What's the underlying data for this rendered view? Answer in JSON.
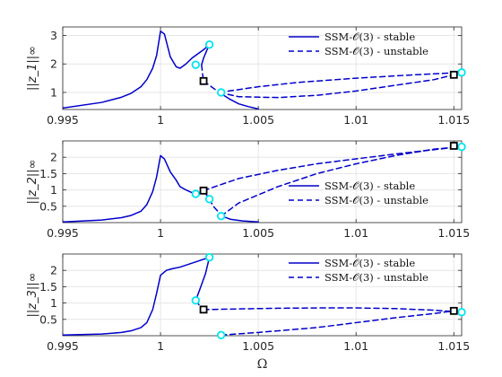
{
  "chart_data": [
    {
      "type": "line",
      "ylabel": "||z_1||∞",
      "xlim": [
        0.995,
        1.0154
      ],
      "ylim": [
        0.4,
        3.3
      ],
      "xticks": [
        0.995,
        1.0,
        1.005,
        1.01,
        1.015
      ],
      "xtick_labels": [
        "0.995",
        "1",
        "1.005",
        "1.01",
        "1.015"
      ],
      "yticks": [
        1,
        2,
        3
      ],
      "ytick_labels": [
        "1",
        "2",
        "3"
      ],
      "grid": true,
      "legend": {
        "placement": "top-right",
        "entries": [
          {
            "label": "SSM-𝒪(3) - stable",
            "style": "solid"
          },
          {
            "label": "SSM-𝒪(3) - unstable",
            "style": "dashed"
          }
        ]
      },
      "series": [
        {
          "style": "solid",
          "x": [
            0.995,
            0.997,
            0.998,
            0.9985,
            0.999,
            0.9993,
            0.9996,
            0.9998,
            1.0,
            1.0002,
            1.0005,
            1.0008,
            1.001,
            1.0013,
            1.0016,
            1.0019,
            1.0022,
            1.0025
          ],
          "y": [
            0.45,
            0.65,
            0.83,
            0.97,
            1.2,
            1.45,
            1.85,
            2.3,
            3.15,
            3.05,
            2.25,
            1.9,
            1.85,
            2.0,
            2.2,
            2.35,
            2.5,
            2.68
          ]
        },
        {
          "style": "solid",
          "x": [
            1.0025,
            1.00235,
            1.0022,
            1.0021
          ],
          "y": [
            2.68,
            2.45,
            2.2,
            1.97
          ]
        },
        {
          "style": "dashed",
          "x": [
            1.0021,
            1.00215,
            1.0022
          ],
          "y": [
            1.97,
            1.65,
            1.4
          ]
        },
        {
          "style": "dashed",
          "x": [
            1.0022,
            1.0026,
            1.003
          ],
          "y": [
            1.4,
            1.2,
            1.0
          ]
        },
        {
          "style": "dashed",
          "x": [
            1.003,
            1.005,
            1.007,
            1.01,
            1.013,
            1.0154
          ],
          "y": [
            1.0,
            1.2,
            1.35,
            1.5,
            1.62,
            1.7
          ]
        },
        {
          "style": "dashed",
          "x": [
            1.003,
            1.004,
            1.006,
            1.008,
            1.01,
            1.012,
            1.014,
            1.015
          ],
          "y": [
            1.0,
            0.85,
            0.82,
            0.9,
            1.05,
            1.25,
            1.45,
            1.62
          ]
        },
        {
          "style": "solid",
          "x": [
            1.003,
            1.0035,
            1.004,
            1.0045,
            1.005
          ],
          "y": [
            1.0,
            0.78,
            0.6,
            0.5,
            0.42
          ]
        }
      ],
      "markers": [
        {
          "kind": "fold",
          "x": 1.0025,
          "y": 2.68
        },
        {
          "kind": "fold",
          "x": 1.0018,
          "y": 1.97
        },
        {
          "kind": "fold",
          "x": 1.0031,
          "y": 1.0
        },
        {
          "kind": "fold",
          "x": 1.0154,
          "y": 1.7
        },
        {
          "kind": "hopf",
          "x": 1.0022,
          "y": 1.4
        },
        {
          "kind": "hopf",
          "x": 1.015,
          "y": 1.62
        }
      ]
    },
    {
      "type": "line",
      "ylabel": "||z_2||∞",
      "xlim": [
        0.995,
        1.0154
      ],
      "ylim": [
        0.0,
        2.5
      ],
      "xticks": [
        0.995,
        1.0,
        1.005,
        1.01,
        1.015
      ],
      "xtick_labels": [
        "0.995",
        "1",
        "1.005",
        "1.01",
        "1.015"
      ],
      "yticks": [
        0.5,
        1,
        1.5,
        2
      ],
      "ytick_labels": [
        "0.5",
        "1",
        "1.5",
        "2"
      ],
      "grid": true,
      "legend": {
        "placement": "bottom-right",
        "entries": [
          {
            "label": "SSM-𝒪(3) - stable",
            "style": "solid"
          },
          {
            "label": "SSM-𝒪(3) - unstable",
            "style": "dashed"
          }
        ]
      },
      "series": [
        {
          "style": "solid",
          "x": [
            0.995,
            0.997,
            0.998,
            0.9985,
            0.999,
            0.9993,
            0.9996,
            0.9998,
            1.0,
            1.0002,
            1.0005,
            1.0008,
            1.001,
            1.0013,
            1.0016,
            1.0018
          ],
          "y": [
            0.02,
            0.08,
            0.15,
            0.22,
            0.35,
            0.55,
            0.95,
            1.4,
            2.05,
            1.95,
            1.55,
            1.3,
            1.1,
            1.0,
            0.92,
            0.88
          ]
        },
        {
          "style": "solid",
          "x": [
            1.0018,
            1.002,
            1.0022,
            1.0025
          ],
          "y": [
            0.88,
            0.92,
            0.98,
            0.72
          ]
        },
        {
          "style": "dashed",
          "x": [
            1.0022,
            1.004,
            1.006,
            1.008,
            1.01,
            1.012,
            1.015
          ],
          "y": [
            0.98,
            1.35,
            1.6,
            1.8,
            1.95,
            2.1,
            2.3
          ]
        },
        {
          "style": "dashed",
          "x": [
            1.0025,
            1.0027,
            1.003,
            1.0031
          ],
          "y": [
            0.72,
            0.5,
            0.3,
            0.2
          ]
        },
        {
          "style": "dashed",
          "x": [
            1.0031,
            1.004,
            1.006,
            1.008,
            1.01,
            1.012,
            1.014,
            1.0154
          ],
          "y": [
            0.2,
            0.6,
            1.1,
            1.5,
            1.8,
            2.05,
            2.25,
            2.32
          ]
        },
        {
          "style": "solid",
          "x": [
            1.0031,
            1.0036,
            1.0042,
            1.005
          ],
          "y": [
            0.2,
            0.1,
            0.05,
            0.02
          ]
        }
      ],
      "markers": [
        {
          "kind": "fold",
          "x": 1.0018,
          "y": 0.88
        },
        {
          "kind": "fold",
          "x": 1.0025,
          "y": 0.72
        },
        {
          "kind": "fold",
          "x": 1.0031,
          "y": 0.2
        },
        {
          "kind": "fold",
          "x": 1.0154,
          "y": 2.32
        },
        {
          "kind": "hopf",
          "x": 1.0022,
          "y": 0.98
        },
        {
          "kind": "hopf",
          "x": 1.015,
          "y": 2.35
        }
      ]
    },
    {
      "type": "line",
      "ylabel": "||z_3||∞",
      "xlabel": "Ω",
      "xlim": [
        0.995,
        1.0154
      ],
      "ylim": [
        0.0,
        2.5
      ],
      "xticks": [
        0.995,
        1.0,
        1.005,
        1.01,
        1.015
      ],
      "xtick_labels": [
        "0.995",
        "1",
        "1.005",
        "1.01",
        "1.015"
      ],
      "yticks": [
        0.5,
        1,
        1.5,
        2
      ],
      "ytick_labels": [
        "0.5",
        "1",
        "1.5",
        "2"
      ],
      "grid": true,
      "legend": {
        "placement": "top-right",
        "entries": [
          {
            "label": "SSM-𝒪(3) - stable",
            "style": "solid"
          },
          {
            "label": "SSM-𝒪(3) - unstable",
            "style": "dashed"
          }
        ]
      },
      "series": [
        {
          "style": "solid",
          "x": [
            0.995,
            0.997,
            0.998,
            0.9985,
            0.999,
            0.9993,
            0.9996,
            0.9998,
            1.0,
            1.0003,
            1.0006,
            1.001,
            1.0015,
            1.002,
            1.0025
          ],
          "y": [
            0.02,
            0.05,
            0.1,
            0.15,
            0.25,
            0.4,
            0.8,
            1.3,
            1.85,
            2.0,
            2.05,
            2.1,
            2.2,
            2.3,
            2.4
          ]
        },
        {
          "style": "solid",
          "x": [
            1.0025,
            1.0023,
            1.002,
            1.0018
          ],
          "y": [
            2.4,
            1.9,
            1.4,
            1.08
          ]
        },
        {
          "style": "dashed",
          "x": [
            1.0018,
            1.002,
            1.0022
          ],
          "y": [
            1.08,
            0.92,
            0.8
          ]
        },
        {
          "style": "dashed",
          "x": [
            1.0022,
            1.004,
            1.006,
            1.008,
            1.01,
            1.012,
            1.014,
            1.0154
          ],
          "y": [
            0.8,
            0.82,
            0.84,
            0.85,
            0.85,
            0.83,
            0.78,
            0.72
          ]
        },
        {
          "style": "dashed",
          "x": [
            1.0031,
            1.005,
            1.008,
            1.01,
            1.012,
            1.014,
            1.015
          ],
          "y": [
            0.02,
            0.1,
            0.25,
            0.4,
            0.55,
            0.68,
            0.76
          ]
        }
      ],
      "markers": [
        {
          "kind": "fold",
          "x": 1.0025,
          "y": 2.4
        },
        {
          "kind": "fold",
          "x": 1.0018,
          "y": 1.08
        },
        {
          "kind": "fold",
          "x": 1.0031,
          "y": 0.02
        },
        {
          "kind": "fold",
          "x": 1.0154,
          "y": 0.72
        },
        {
          "kind": "hopf",
          "x": 1.0022,
          "y": 0.8
        },
        {
          "kind": "hopf",
          "x": 1.015,
          "y": 0.76
        }
      ]
    }
  ],
  "colors": {
    "curve": "#0000cc",
    "fold_marker": "#00e5ee",
    "hopf_marker": "#000000",
    "grid": "#e6e6e6",
    "axis": "#262626"
  }
}
